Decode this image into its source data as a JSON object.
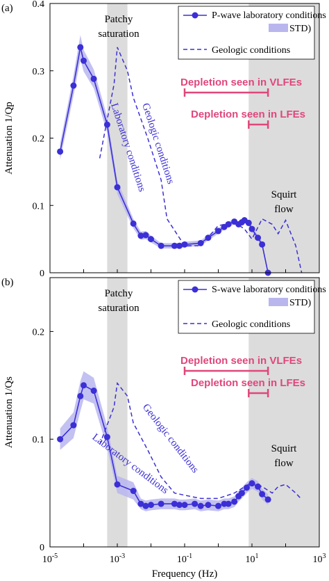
{
  "colors": {
    "lab": "#3b2fd6",
    "std": "#b9b6ee",
    "shade": "#dcdcdc",
    "annotation": "#e0467c"
  },
  "shared": {
    "xlabel": "Frequency (Hz)",
    "x_tick_labels": [
      "10-5",
      "10-3",
      "10-1",
      "101",
      "103"
    ],
    "x_tick_values": [
      -5,
      -3,
      -1,
      1,
      3
    ]
  },
  "chart_data": [
    {
      "type": "line",
      "panel_label": "(a)",
      "ylabel": "Attenuation 1/Qp",
      "ylim": [
        0,
        0.4
      ],
      "y_ticks": [
        0,
        0.1,
        0.2,
        0.3,
        0.4
      ],
      "y_tick_labels": [
        "0",
        "0.1",
        "0.2",
        "0.3",
        "0.4"
      ],
      "xscale": "log",
      "xlim": [
        1e-05,
        1000
      ],
      "shaded_bands": [
        {
          "label": "Patchy saturation",
          "x_from": 0.0005,
          "x_to": 0.002
        },
        {
          "label": "Squirt flow",
          "x_from": 8,
          "x_to": 1000
        }
      ],
      "legend": {
        "placement": "top-right",
        "entries": [
          "P-wave laboratory conditions (",
          "STD)",
          "Geologic conditions"
        ]
      },
      "series": [
        {
          "name": "P-wave laboratory conditions",
          "style": "solid-markers",
          "x": [
            2e-05,
            5e-05,
            8e-05,
            0.0001,
            0.0002,
            0.0005,
            0.001,
            0.003,
            0.005,
            0.007,
            0.01,
            0.02,
            0.05,
            0.07,
            0.1,
            0.3,
            0.5,
            1,
            1.5,
            2,
            3,
            4,
            5,
            6,
            8,
            10,
            15,
            20,
            30
          ],
          "y": [
            0.18,
            0.278,
            0.335,
            0.315,
            0.288,
            0.22,
            0.127,
            0.073,
            0.055,
            0.056,
            0.05,
            0.04,
            0.04,
            0.04,
            0.042,
            0.044,
            0.052,
            0.062,
            0.068,
            0.072,
            0.076,
            0.072,
            0.075,
            0.078,
            0.074,
            0.065,
            0.052,
            0.042,
            0.0
          ],
          "std": [
            0.012,
            0.015,
            0.018,
            0.016,
            0.014,
            0.012,
            0.01,
            0.007,
            0.006,
            0.006,
            0.005,
            0.004,
            0.004,
            0.004,
            0.004,
            0.004,
            0.004,
            0.004,
            0.004,
            0.004,
            0.004,
            0.004,
            0.004,
            0.004,
            0.004,
            0.004,
            0.004,
            0.004,
            0.004
          ]
        },
        {
          "name": "Geologic conditions",
          "style": "dashed",
          "x": [
            0.0003,
            0.0008,
            0.001,
            0.002,
            0.003,
            0.008,
            0.02,
            0.03,
            0.1,
            0.3,
            1,
            3,
            6,
            10,
            20,
            40,
            60,
            100,
            200,
            300
          ],
          "y": [
            0.17,
            0.28,
            0.335,
            0.3,
            0.26,
            0.2,
            0.138,
            0.08,
            0.04,
            0.04,
            0.07,
            0.075,
            0.065,
            0.05,
            0.08,
            0.072,
            0.058,
            0.078,
            0.04,
            0.0
          ]
        }
      ],
      "curve_labels": [
        "Laboratory conditions",
        "Geologic conditions"
      ],
      "annotations": [
        {
          "text": "Depletion seen in VLFEs",
          "x_from": 0.1,
          "x_to": 30
        },
        {
          "text": "Depletion seen in LFEs",
          "x_from": 8,
          "x_to": 30
        }
      ]
    },
    {
      "type": "line",
      "panel_label": "(b)",
      "ylabel": "Attenuation 1/Qs",
      "ylim": [
        0,
        0.25
      ],
      "y_ticks": [
        0,
        0.1,
        0.2
      ],
      "y_tick_labels": [
        "0",
        "0.1",
        "0.2"
      ],
      "xscale": "log",
      "xlim": [
        1e-05,
        1000
      ],
      "shaded_bands": [
        {
          "label": "Patchy saturation",
          "x_from": 0.0005,
          "x_to": 0.002
        },
        {
          "label": "Squirt flow",
          "x_from": 8,
          "x_to": 1000
        }
      ],
      "legend": {
        "placement": "top-right",
        "entries": [
          "S-wave laboratory conditions (",
          "STD)",
          "Geologic conditions"
        ]
      },
      "series": [
        {
          "name": "S-wave laboratory conditions",
          "style": "solid-markers",
          "x": [
            2e-05,
            5e-05,
            8e-05,
            0.0001,
            0.0002,
            0.0005,
            0.001,
            0.003,
            0.005,
            0.007,
            0.01,
            0.02,
            0.05,
            0.07,
            0.1,
            0.2,
            0.3,
            0.5,
            1,
            1.5,
            2,
            3,
            4,
            5,
            7,
            10,
            15,
            20,
            30
          ],
          "y": [
            0.1,
            0.113,
            0.14,
            0.15,
            0.145,
            0.102,
            0.058,
            0.052,
            0.04,
            0.038,
            0.039,
            0.04,
            0.04,
            0.039,
            0.039,
            0.04,
            0.038,
            0.039,
            0.038,
            0.04,
            0.04,
            0.042,
            0.047,
            0.05,
            0.055,
            0.059,
            0.056,
            0.049,
            0.044
          ],
          "std": [
            0.01,
            0.012,
            0.014,
            0.013,
            0.012,
            0.01,
            0.008,
            0.008,
            0.005,
            0.005,
            0.005,
            0.005,
            0.005,
            0.005,
            0.005,
            0.005,
            0.005,
            0.005,
            0.005,
            0.005,
            0.005,
            0.005,
            0.005,
            0.005,
            0.005,
            0.005,
            0.005,
            0.005,
            0.005
          ]
        },
        {
          "name": "Geologic conditions",
          "style": "dashed",
          "x": [
            0.0003,
            0.0008,
            0.001,
            0.002,
            0.003,
            0.008,
            0.02,
            0.05,
            0.1,
            0.3,
            1,
            3,
            10,
            20,
            40,
            60,
            100,
            200,
            300
          ],
          "y": [
            0.095,
            0.13,
            0.152,
            0.14,
            0.115,
            0.09,
            0.065,
            0.05,
            0.048,
            0.045,
            0.045,
            0.05,
            0.06,
            0.056,
            0.05,
            0.056,
            0.058,
            0.05,
            0.044
          ]
        }
      ],
      "curve_labels": [
        "Laboratory conditions",
        "Geologic conditions"
      ],
      "annotations": [
        {
          "text": "Depletion seen in VLFEs",
          "x_from": 0.1,
          "x_to": 30
        },
        {
          "text": "Depletion seen in LFEs",
          "x_from": 8,
          "x_to": 30
        }
      ]
    }
  ]
}
